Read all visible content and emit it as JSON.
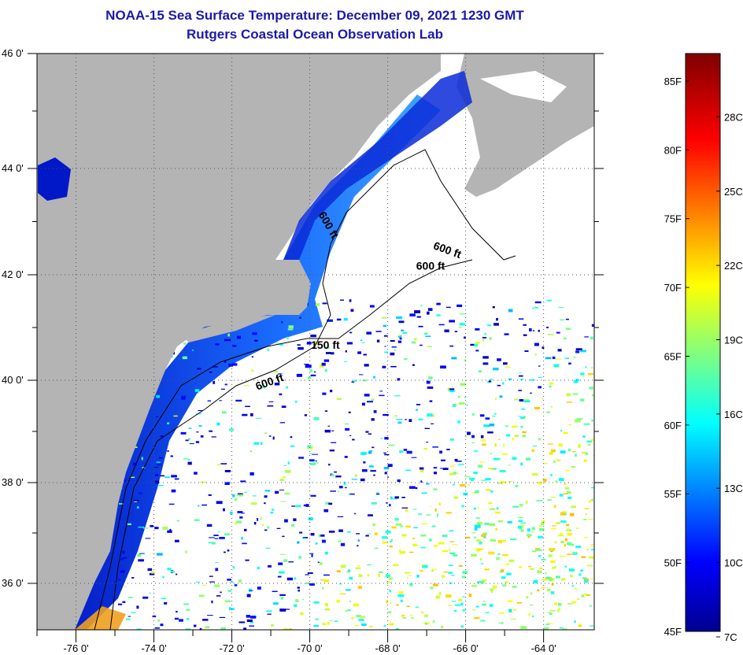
{
  "title": {
    "line1": "NOAA-15 Sea Surface Temperature:  December 09, 2021 1230 GMT",
    "line2": "Rutgers Coastal Ocean Observation Lab"
  },
  "map": {
    "lon_range": [
      -77,
      -62.7
    ],
    "lat_range": [
      35.1,
      46
    ],
    "lon_ticks": [
      {
        "value": -76,
        "label": "-76 0'"
      },
      {
        "value": -74,
        "label": "-74 0'"
      },
      {
        "value": -72,
        "label": "-72 0'"
      },
      {
        "value": -70,
        "label": "-70 0'"
      },
      {
        "value": -68,
        "label": "-68 0'"
      },
      {
        "value": -66,
        "label": "-66 0'"
      },
      {
        "value": -64,
        "label": "-64 0'"
      }
    ],
    "lat_ticks": [
      {
        "value": 46,
        "label": "46 0'"
      },
      {
        "value": 44,
        "label": "44 0'"
      },
      {
        "value": 42,
        "label": "42 0'"
      },
      {
        "value": 40,
        "label": "40 0'"
      },
      {
        "value": 38,
        "label": "38 0'"
      },
      {
        "value": 36,
        "label": "36 0'"
      }
    ],
    "contour_labels": [
      {
        "text": "600 ft",
        "lon": -69.6,
        "lat": 42.9,
        "rotate": 60
      },
      {
        "text": "600 ft",
        "lon": -66.5,
        "lat": 42.4,
        "rotate": 20
      },
      {
        "text": "600 ft",
        "lon": -66.9,
        "lat": 42.1,
        "rotate": 0
      },
      {
        "text": "150 ft",
        "lon": -69.6,
        "lat": 40.6,
        "rotate": 0
      },
      {
        "text": "600 ft",
        "lon": -71.0,
        "lat": 39.9,
        "rotate": -20
      }
    ],
    "land_color": "#b4b4b4"
  },
  "colorbar": {
    "range_f": [
      45,
      87
    ],
    "fahrenheit": [
      "85F",
      "80F",
      "75F",
      "70F",
      "65F",
      "60F",
      "55F",
      "50F",
      "45F"
    ],
    "fahrenheit_values": [
      85,
      80,
      75,
      70,
      65,
      60,
      55,
      50,
      45
    ],
    "celsius": [
      "28C",
      "25C",
      "22C",
      "19C",
      "16C",
      "13C",
      "10C",
      "7C"
    ],
    "celsius_values": [
      28,
      25,
      22,
      19,
      16,
      13,
      10,
      7
    ]
  }
}
